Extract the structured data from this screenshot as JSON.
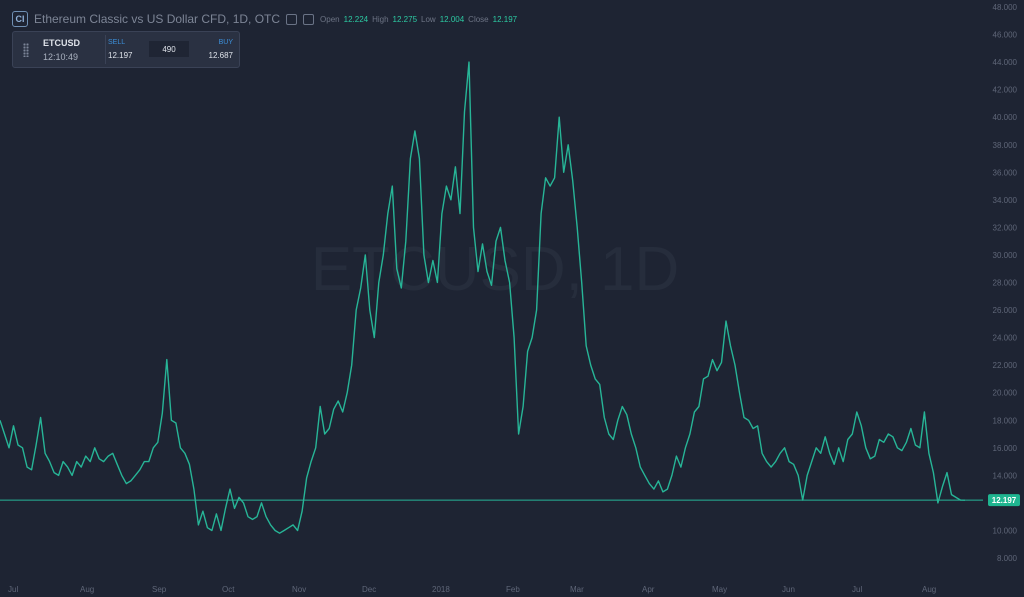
{
  "header": {
    "symbol_badge": "CI",
    "title": "Ethereum Classic vs US Dollar CFD, 1D, OTC",
    "open_label": "Open",
    "open_value": "12.224",
    "high_label": "High",
    "high_value": "12.275",
    "low_label": "Low",
    "low_value": "12.004",
    "close_label": "Close",
    "close_value": "12.197"
  },
  "trade_panel": {
    "symbol": "ETCUSD",
    "time": "12:10:49",
    "sell_label": "SELL",
    "sell_value": "12.197",
    "spread": "490",
    "buy_label": "BUY",
    "buy_value": "12.687"
  },
  "colors": {
    "background": "#1e2433",
    "line": "#27b597",
    "price_tag": "#1fb590",
    "axis_text": "#5f6678"
  },
  "chart_data": {
    "type": "line",
    "title": "Ethereum Classic vs US Dollar CFD, 1D, OTC",
    "watermark": "ETCUSD, 1D",
    "ylim": [
      8,
      48
    ],
    "y_ticks": [
      "8.000",
      "10.000",
      "12.000",
      "14.000",
      "16.000",
      "18.000",
      "20.000",
      "22.000",
      "24.000",
      "26.000",
      "28.000",
      "30.000",
      "32.000",
      "34.000",
      "36.000",
      "38.000",
      "40.000",
      "42.000",
      "44.000",
      "46.000",
      "48.000"
    ],
    "x_labels": [
      "Jul",
      "Aug",
      "Sep",
      "Oct",
      "Nov",
      "Dec",
      "2018",
      "Feb",
      "Mar",
      "Apr",
      "May",
      "Jun",
      "Jul",
      "Aug"
    ],
    "last_price": 12.197,
    "series": [
      {
        "values": [
          18.0,
          17.0,
          16.0,
          17.6,
          16.2,
          16.0,
          14.6,
          14.4,
          16.2,
          18.2,
          15.6,
          15.0,
          14.2,
          14.0,
          15.0,
          14.6,
          14.0,
          15.0,
          14.6,
          15.4,
          15.0,
          16.0,
          15.2,
          15.0,
          15.4,
          15.6,
          14.8,
          14.0,
          13.4,
          13.6,
          14.0,
          14.4,
          15.0,
          15.0,
          16.0,
          16.4,
          18.5,
          22.4,
          18.0,
          17.8,
          16.0,
          15.6,
          14.8,
          13.0,
          10.4,
          11.4,
          10.2,
          10.0,
          11.2,
          10.0,
          11.6,
          13.0,
          11.6,
          12.4,
          12.0,
          11.0,
          10.8,
          11.0,
          12.0,
          11.0,
          10.4,
          10.0,
          9.8,
          10.0,
          10.2,
          10.4,
          10.0,
          11.4,
          13.8,
          15.0,
          16.0,
          19.0,
          17.0,
          17.4,
          18.8,
          19.4,
          18.6,
          20.0,
          22.0,
          26.0,
          27.6,
          30.0,
          26.0,
          24.0,
          28.0,
          30.0,
          33.0,
          35.0,
          29.0,
          27.6,
          31.0,
          37.0,
          39.0,
          37.0,
          30.0,
          28.0,
          29.6,
          28.0,
          33.0,
          35.0,
          34.0,
          36.4,
          33.0,
          40.4,
          44.0,
          32.0,
          28.8,
          30.8,
          28.8,
          27.8,
          31.0,
          32.0,
          29.6,
          28.0,
          24.0,
          17.0,
          19.0,
          23.0,
          24.0,
          26.0,
          33.0,
          35.6,
          35.0,
          35.6,
          40.0,
          36.0,
          38.0,
          35.4,
          32.0,
          28.0,
          23.4,
          22.0,
          21.0,
          20.6,
          18.2,
          17.0,
          16.6,
          18.0,
          19.0,
          18.4,
          17.0,
          16.0,
          14.6,
          14.0,
          13.4,
          13.0,
          13.6,
          12.8,
          13.0,
          14.0,
          15.4,
          14.6,
          16.0,
          17.0,
          18.6,
          19.0,
          21.0,
          21.2,
          22.4,
          21.6,
          22.2,
          25.2,
          23.4,
          22.0,
          20.0,
          18.2,
          18.0,
          17.4,
          17.6,
          15.6,
          15.0,
          14.6,
          15.0,
          15.6,
          16.0,
          15.0,
          14.8,
          14.0,
          12.2,
          14.0,
          15.0,
          16.0,
          15.6,
          16.8,
          15.6,
          14.8,
          16.0,
          15.0,
          16.6,
          17.0,
          18.6,
          17.6,
          16.0,
          15.2,
          15.4,
          16.6,
          16.4,
          17.0,
          16.8,
          16.0,
          15.8,
          16.4,
          17.4,
          16.2,
          16.0,
          18.6,
          15.6,
          14.2,
          12.0,
          13.2,
          14.2,
          12.6,
          12.4,
          12.2,
          12.197
        ]
      }
    ]
  }
}
